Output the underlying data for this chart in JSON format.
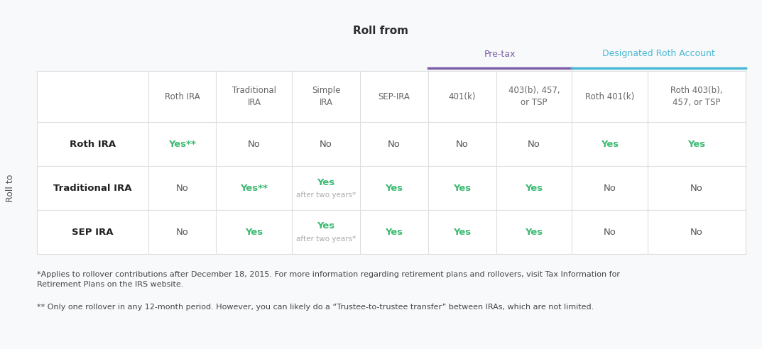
{
  "title": "Roll from",
  "pretax_label": "Pre-tax",
  "pretax_color": "#7b5ea7",
  "roth_label": "Designated Roth Account",
  "roth_color": "#4ab8d4",
  "roll_to_label": "Roll to",
  "col_headers": [
    "",
    "Roth IRA",
    "Traditional\nIRA",
    "Simple\nIRA",
    "SEP-IRA",
    "401(k)",
    "403(b), 457,\nor TSP",
    "Roth 401(k)",
    "Roth 403(b),\n457, or TSP"
  ],
  "row_labels": [
    "Roth IRA",
    "Traditional IRA",
    "SEP IRA"
  ],
  "table_data": [
    [
      "Yes**",
      "No",
      "No",
      "No",
      "No",
      "No",
      "Yes",
      "Yes"
    ],
    [
      "No",
      "Yes**",
      "Yes\nafter two years*",
      "Yes",
      "Yes",
      "Yes",
      "No",
      "No"
    ],
    [
      "No",
      "Yes",
      "Yes\nafter two years*",
      "Yes",
      "Yes",
      "Yes",
      "No",
      "No"
    ]
  ],
  "yes_color": "#3dba72",
  "no_color": "#555555",
  "header_text_color": "#666666",
  "row_label_color": "#222222",
  "bg_color": "#f8f9fa",
  "table_bg": "#ffffff",
  "grid_color": "#dddddd",
  "footnote1": "*Applies to rollover contributions after December 18, 2015. For more information regarding retirement plans and rollovers, visit Tax Information for\nRetirement Plans on the IRS website.",
  "footnote2": "** Only one rollover in any 12-month period. However, you can likely do a “Trustee-to-trustee transfer” between IRAs, which are not limited."
}
